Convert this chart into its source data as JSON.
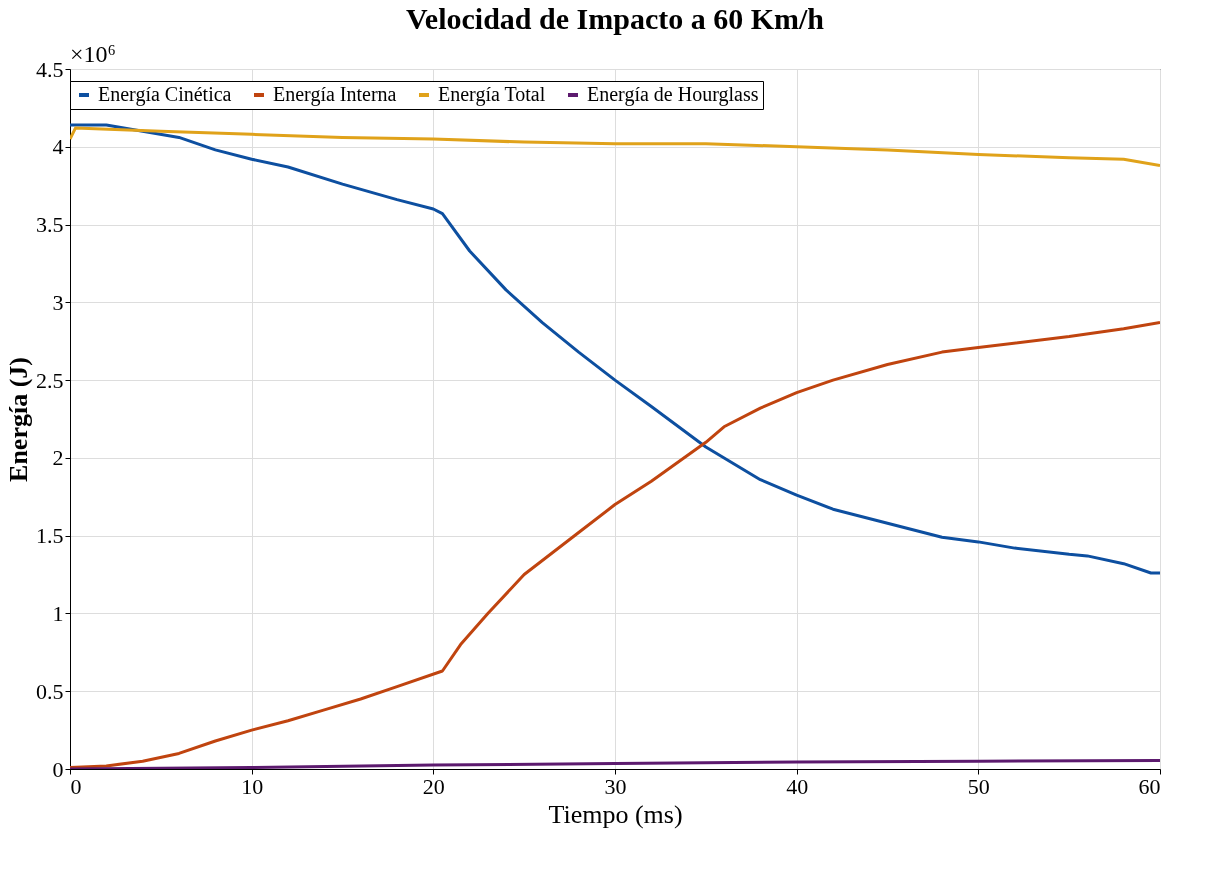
{
  "chart_data": {
    "type": "line",
    "title": "Velocidad de Impacto a 60 Km/h",
    "xlabel": "Tiempo (ms)",
    "ylabel": "Energía (J)",
    "annotations": [
      "×10⁶"
    ],
    "xlim": [
      0,
      60
    ],
    "xticks": [
      0,
      10,
      20,
      30,
      40,
      50,
      60
    ],
    "ylim": [
      0,
      4.5
    ],
    "yticks": [
      0,
      0.5,
      1,
      1.5,
      2,
      2.5,
      3,
      3.5,
      4,
      4.5
    ],
    "grid": true,
    "legend": "top",
    "line_style": "solid",
    "marker": "none",
    "series": [
      {
        "name": "Energía Cinética",
        "color": "#0d4fa0",
        "x": [
          0,
          2,
          4,
          6,
          8,
          10,
          12,
          15,
          18,
          20,
          20.5,
          22,
          24,
          26,
          28,
          30,
          32,
          35,
          38,
          40,
          42,
          45,
          48,
          50,
          52,
          55,
          56,
          58,
          59.5,
          60
        ],
        "values": [
          4.14,
          4.14,
          4.1,
          4.06,
          3.98,
          3.92,
          3.87,
          3.76,
          3.66,
          3.6,
          3.57,
          3.33,
          3.08,
          2.87,
          2.68,
          2.5,
          2.33,
          2.07,
          1.86,
          1.76,
          1.67,
          1.58,
          1.49,
          1.46,
          1.42,
          1.38,
          1.37,
          1.32,
          1.26,
          1.26
        ]
      },
      {
        "name": "Energía Interna",
        "color": "#c0440f",
        "x": [
          0,
          2,
          4,
          6,
          8,
          10,
          12,
          14,
          16,
          18,
          20.5,
          21.5,
          23,
          25,
          28,
          30,
          32,
          35,
          36,
          38,
          40,
          42,
          45,
          48,
          50,
          55,
          58,
          60
        ],
        "values": [
          0.01,
          0.02,
          0.05,
          0.1,
          0.18,
          0.25,
          0.31,
          0.38,
          0.45,
          0.53,
          0.63,
          0.8,
          1.0,
          1.25,
          1.52,
          1.7,
          1.85,
          2.1,
          2.2,
          2.32,
          2.42,
          2.5,
          2.6,
          2.68,
          2.71,
          2.78,
          2.83,
          2.87
        ]
      },
      {
        "name": "Energía Total",
        "color": "#e0a21a",
        "x": [
          0,
          0.3,
          5,
          10,
          15,
          20,
          25,
          30,
          35,
          40,
          45,
          50,
          55,
          58,
          60
        ],
        "values": [
          4.05,
          4.12,
          4.1,
          4.08,
          4.06,
          4.05,
          4.03,
          4.02,
          4.02,
          4.0,
          3.98,
          3.95,
          3.93,
          3.92,
          3.88
        ]
      },
      {
        "name": "Energía de Hourglass",
        "color": "#5c1a6e",
        "x": [
          0,
          10,
          20,
          30,
          40,
          50,
          60
        ],
        "values": [
          0,
          0.01,
          0.025,
          0.035,
          0.045,
          0.05,
          0.055
        ]
      }
    ]
  }
}
